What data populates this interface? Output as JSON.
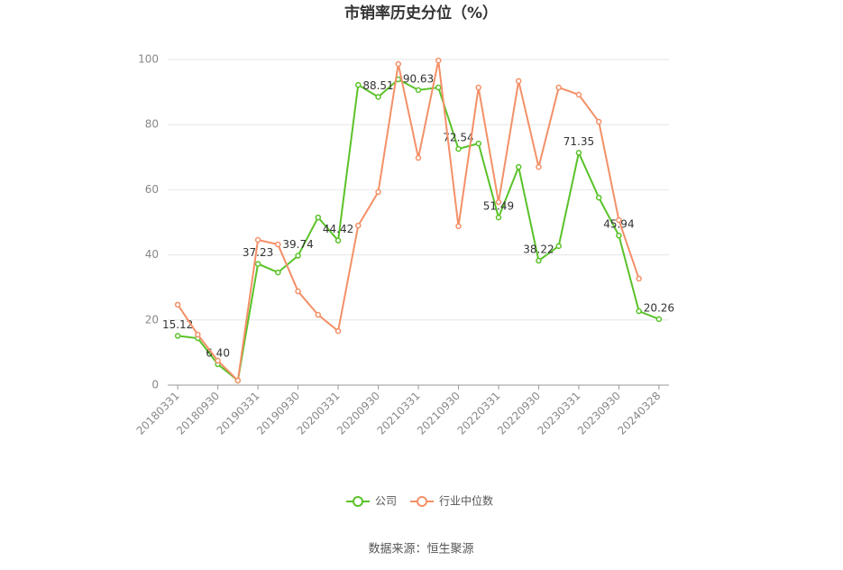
{
  "chart_data": {
    "type": "line",
    "title": "市销率历史分位（%）",
    "source": "数据来源：恒生聚源",
    "categories": [
      "20180331",
      null,
      "20180930",
      null,
      "20190331",
      null,
      "20190930",
      null,
      "20200331",
      null,
      "20200930",
      null,
      "20210331",
      null,
      "20210930",
      null,
      "20220331",
      null,
      "20220930",
      null,
      "20230331",
      null,
      "20230930",
      null,
      "20240328"
    ],
    "series": [
      {
        "name": "公司",
        "color": "#5ac229",
        "values": [
          15.12,
          14.4,
          6.4,
          1.4,
          37.23,
          34.6,
          39.74,
          51.5,
          44.42,
          92.2,
          88.51,
          93.9,
          90.63,
          91.4,
          72.54,
          74.2,
          51.49,
          67.0,
          38.22,
          42.7,
          71.35,
          57.6,
          45.94,
          22.7,
          20.26
        ],
        "value_labels": [
          "15.12",
          null,
          "6.40",
          null,
          "37.23",
          null,
          "39.74",
          null,
          "44.42",
          null,
          "88.51",
          null,
          "90.63",
          null,
          "72.54",
          null,
          "51.49",
          null,
          "38.22",
          null,
          "71.35",
          null,
          "45.94",
          null,
          "20.26"
        ]
      },
      {
        "name": "行业中位数",
        "color": "#f39068",
        "values": [
          24.7,
          15.5,
          7.5,
          1.4,
          44.6,
          43.2,
          28.8,
          21.6,
          16.6,
          49.0,
          59.3,
          98.6,
          69.8,
          99.7,
          48.8,
          91.4,
          56.2,
          93.4,
          67.0,
          91.4,
          89.2,
          80.9,
          50.7,
          32.7,
          null
        ]
      }
    ],
    "ylim": [
      0,
      100
    ],
    "yticks": [
      0,
      20,
      40,
      60,
      80,
      100
    ],
    "grid": true
  }
}
